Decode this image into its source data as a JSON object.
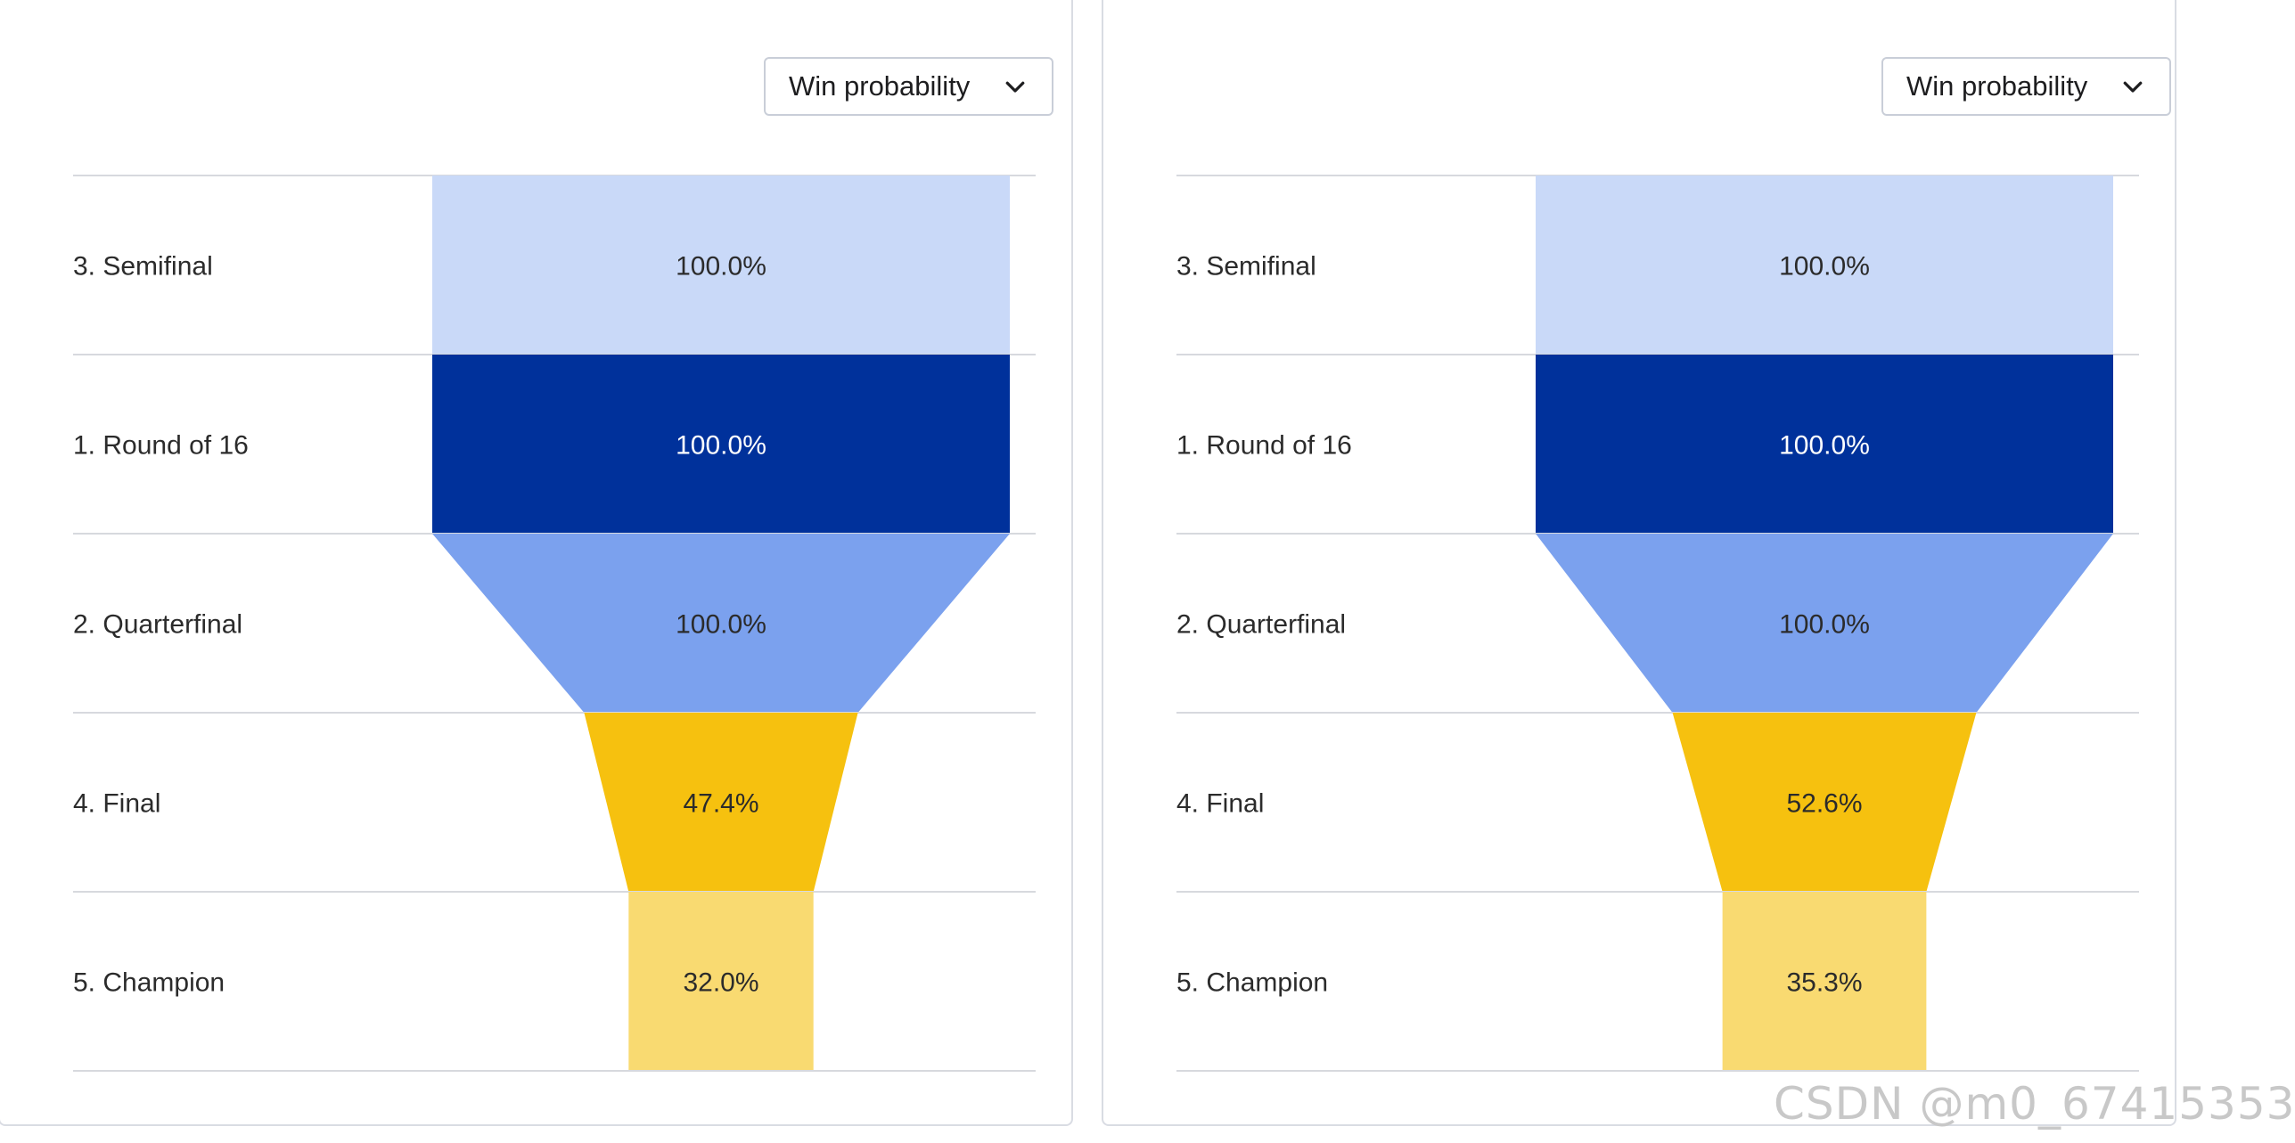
{
  "chart_data": [
    {
      "type": "funnel",
      "dropdown_label": "Win probability",
      "categories": [
        "3. Semifinal",
        "1. Round of 16",
        "2. Quarterfinal",
        "4. Final",
        "5. Champion"
      ],
      "values": [
        100.0,
        100.0,
        100.0,
        47.4,
        32.0
      ],
      "labels": [
        "100.0%",
        "100.0%",
        "100.0%",
        "47.4%",
        "32.0%"
      ],
      "bottom_widths": [
        100.0,
        100.0,
        47.4,
        32.0,
        32.0
      ],
      "colors": [
        "#c9d9f8",
        "#00319b",
        "#7ba1ee",
        "#f6c10f",
        "#f9da71"
      ],
      "label_colors": [
        "#2b2b2b",
        "#ffffff",
        "#2b2b2b",
        "#2b2b2b",
        "#2b2b2b"
      ]
    },
    {
      "type": "funnel",
      "dropdown_label": "Win probability",
      "categories": [
        "3. Semifinal",
        "1. Round of 16",
        "2. Quarterfinal",
        "4. Final",
        "5. Champion"
      ],
      "values": [
        100.0,
        100.0,
        100.0,
        52.6,
        35.3
      ],
      "labels": [
        "100.0%",
        "100.0%",
        "100.0%",
        "52.6%",
        "35.3%"
      ],
      "bottom_widths": [
        100.0,
        100.0,
        52.6,
        35.3,
        35.3
      ],
      "colors": [
        "#c9d9f8",
        "#00319b",
        "#7ba1ee",
        "#f6c10f",
        "#f9da71"
      ],
      "label_colors": [
        "#2b2b2b",
        "#ffffff",
        "#2b2b2b",
        "#2b2b2b",
        "#2b2b2b"
      ]
    }
  ],
  "watermark": "CSDN @m0_67415353"
}
